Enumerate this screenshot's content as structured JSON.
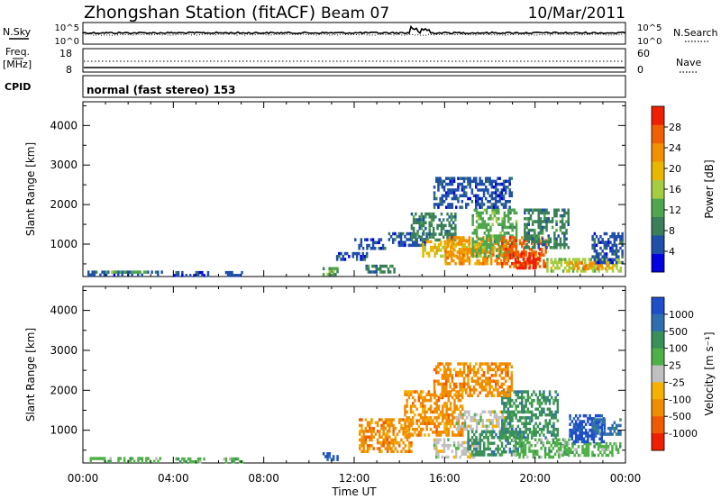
{
  "header": {
    "title": "Zhongshan Station (fitACF)",
    "beam": "Beam 07",
    "date": "10/Mar/2011"
  },
  "strip_nsky": {
    "left_label": "N.Sky",
    "left_ticks": [
      "10^5",
      "10^0"
    ],
    "right_ticks": [
      "10^5",
      "10^0"
    ],
    "right_label": "N.Search"
  },
  "strip_freq": {
    "left_label_1": "Freq.",
    "left_label_2": "[MHz]",
    "left_ticks": [
      "18",
      "8"
    ],
    "right_ticks": [
      "60",
      "0"
    ],
    "right_label": "Nave"
  },
  "strip_cpid": {
    "label": "CPID",
    "text": "normal (fast stereo) 153"
  },
  "chart_data": [
    {
      "type": "heatmap",
      "name": "power",
      "ylabel": "Slant Range [km]",
      "x_ticks": [
        "00:00",
        "04:00",
        "08:00",
        "12:00",
        "16:00",
        "20:00",
        "00:00"
      ],
      "y_ticks": [
        "1000",
        "2000",
        "3000",
        "4000"
      ],
      "xlim_hours": [
        0,
        24
      ],
      "ylim_km": [
        180,
        4600
      ],
      "colorbar": {
        "label": "Power [dB]",
        "ticks": [
          "4",
          "8",
          "12",
          "16",
          "20",
          "24",
          "28"
        ],
        "range": [
          0,
          32
        ],
        "colors": [
          "#0000e0",
          "#1f4fa8",
          "#3a7f5a",
          "#4fa64f",
          "#a6cc3f",
          "#e8b800",
          "#f29000",
          "#f06000",
          "#ee2000"
        ]
      },
      "regions": [
        {
          "t0": 0.2,
          "t1": 3.5,
          "r0": 230,
          "r1": 330,
          "c": 1
        },
        {
          "t0": 1.0,
          "t1": 2.8,
          "r0": 280,
          "r1": 330,
          "c": 3
        },
        {
          "t0": 4.0,
          "t1": 5.5,
          "r0": 230,
          "r1": 320,
          "c": 1
        },
        {
          "t0": 6.2,
          "t1": 7.0,
          "r0": 230,
          "r1": 320,
          "c": 1
        },
        {
          "t0": 10.6,
          "t1": 11.3,
          "r0": 240,
          "r1": 420,
          "c": 3
        },
        {
          "t0": 11.2,
          "t1": 12.6,
          "r0": 600,
          "r1": 800,
          "c": 1
        },
        {
          "t0": 12.0,
          "t1": 13.4,
          "r0": 900,
          "r1": 1150,
          "c": 1
        },
        {
          "t0": 13.5,
          "t1": 15.2,
          "r0": 950,
          "r1": 1300,
          "c": 1
        },
        {
          "t0": 14.5,
          "t1": 16.5,
          "r0": 1100,
          "r1": 1800,
          "c": 2
        },
        {
          "t0": 15.0,
          "t1": 17.8,
          "r0": 700,
          "r1": 1100,
          "c": 5
        },
        {
          "t0": 16.0,
          "t1": 18.8,
          "r0": 500,
          "r1": 1200,
          "c": 6
        },
        {
          "t0": 17.2,
          "t1": 19.2,
          "r0": 700,
          "r1": 1900,
          "c": 3
        },
        {
          "t0": 18.5,
          "t1": 20.5,
          "r0": 450,
          "r1": 1200,
          "c": 7
        },
        {
          "t0": 19.0,
          "t1": 20.2,
          "r0": 400,
          "r1": 800,
          "c": 8
        },
        {
          "t0": 19.5,
          "t1": 21.5,
          "r0": 900,
          "r1": 1900,
          "c": 2
        },
        {
          "t0": 20.5,
          "t1": 23.8,
          "r0": 330,
          "r1": 650,
          "c": 4
        },
        {
          "t0": 21.5,
          "t1": 23.2,
          "r0": 380,
          "r1": 560,
          "c": 6
        },
        {
          "t0": 22.5,
          "t1": 23.9,
          "r0": 500,
          "r1": 1300,
          "c": 1
        },
        {
          "t0": 15.5,
          "t1": 19.0,
          "r0": 1900,
          "r1": 2700,
          "c": 1
        },
        {
          "t0": 12.5,
          "t1": 13.8,
          "r0": 280,
          "r1": 480,
          "c": 2
        }
      ]
    },
    {
      "type": "heatmap",
      "name": "velocity",
      "ylabel": "Slant Range [km]",
      "x_ticks": [
        "00:00",
        "04:00",
        "08:00",
        "12:00",
        "16:00",
        "20:00",
        "00:00"
      ],
      "y_ticks": [
        "1000",
        "2000",
        "3000",
        "4000"
      ],
      "xlim_hours": [
        0,
        24
      ],
      "ylim_km": [
        180,
        4600
      ],
      "xlabel": "Time UT",
      "colorbar": {
        "label": "Velocity [m s⁻¹]",
        "ticks": [
          "1000",
          "500",
          "100",
          "25",
          "-25",
          "-100",
          "-500",
          "-1000"
        ],
        "colors": [
          "#1f4fc8",
          "#2f6fb0",
          "#3a8f5a",
          "#4fb048",
          "#c0c0c0",
          "#f5b000",
          "#f08c00",
          "#f05a00",
          "#ee2000"
        ]
      },
      "regions": [
        {
          "t0": 0.3,
          "t1": 3.5,
          "r0": 230,
          "r1": 330,
          "c": 3
        },
        {
          "t0": 4.0,
          "t1": 5.5,
          "r0": 230,
          "r1": 320,
          "c": 3
        },
        {
          "t0": 6.2,
          "t1": 7.0,
          "r0": 230,
          "r1": 320,
          "c": 3
        },
        {
          "t0": 10.6,
          "t1": 11.3,
          "r0": 240,
          "r1": 450,
          "c": 0
        },
        {
          "t0": 12.2,
          "t1": 14.5,
          "r0": 500,
          "r1": 1300,
          "c": 6
        },
        {
          "t0": 14.2,
          "t1": 16.8,
          "r0": 900,
          "r1": 2000,
          "c": 6
        },
        {
          "t0": 15.5,
          "t1": 17.5,
          "r0": 300,
          "r1": 800,
          "c": 4
        },
        {
          "t0": 16.5,
          "t1": 19.0,
          "r0": 1000,
          "r1": 1500,
          "c": 4
        },
        {
          "t0": 17.0,
          "t1": 19.5,
          "r0": 400,
          "r1": 1000,
          "c": 2
        },
        {
          "t0": 18.5,
          "t1": 21.0,
          "r0": 800,
          "r1": 2000,
          "c": 2
        },
        {
          "t0": 19.0,
          "t1": 21.5,
          "r0": 350,
          "r1": 800,
          "c": 3
        },
        {
          "t0": 21.0,
          "t1": 23.8,
          "r0": 350,
          "r1": 700,
          "c": 3
        },
        {
          "t0": 21.5,
          "t1": 23.0,
          "r0": 700,
          "r1": 1400,
          "c": 0
        },
        {
          "t0": 22.5,
          "t1": 23.8,
          "r0": 900,
          "r1": 1300,
          "c": 1
        },
        {
          "t0": 15.5,
          "t1": 19.0,
          "r0": 1900,
          "r1": 2700,
          "c": 6
        }
      ]
    }
  ]
}
